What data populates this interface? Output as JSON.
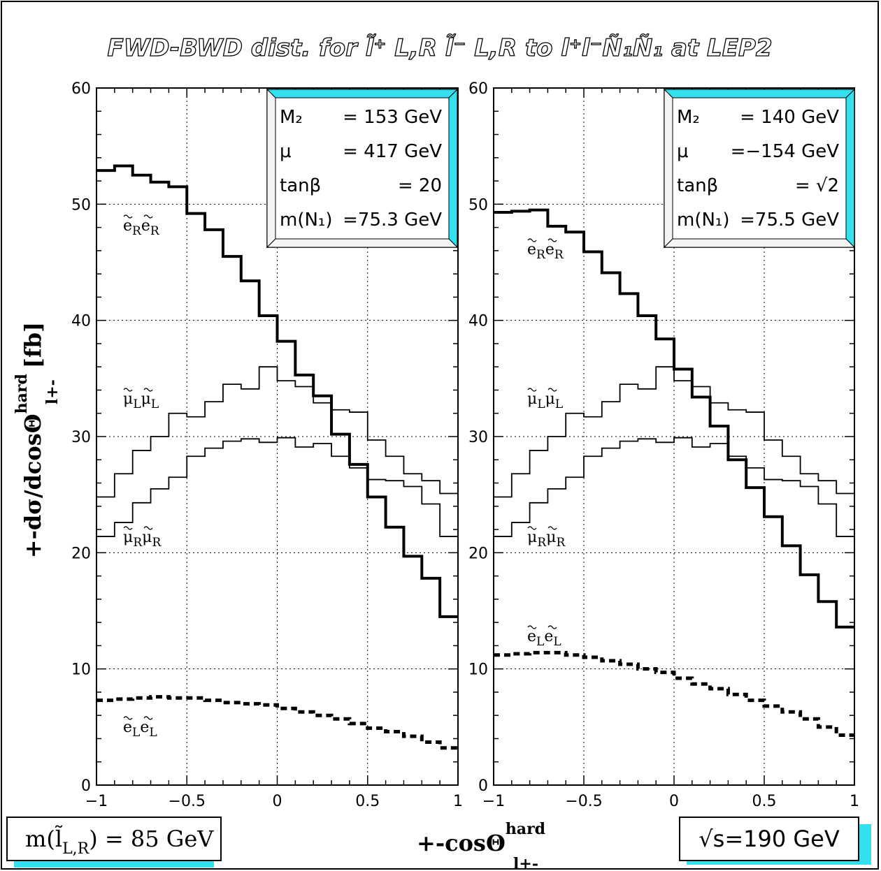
{
  "figure": {
    "title": "FWD-BWD dist. for l̃⁺ L,R l̃⁻ L,R to l⁺l⁻Ñ₁Ñ₁ at LEP2",
    "ylabel": "+-dσ/dcosΘ",
    "ylabel_sup": "hard",
    "ylabel_sub": "l+-",
    "ylabel_unit": "[fb]",
    "xlabel": "+-cosΘ",
    "xlabel_sup": "hard",
    "xlabel_sub": "l+-",
    "mass_box": "m(l̃L,R) = 85 GeV",
    "mass_box_main": "m(l̃",
    "mass_box_sub": "L,R",
    "mass_box_rest": ") = 85 GeV",
    "energy_box": "√s=190 GeV",
    "accent_color": "#33e0f0"
  },
  "chart_data": [
    {
      "type": "line",
      "xlim": [
        -1,
        1
      ],
      "ylim": [
        0,
        60
      ],
      "xticks": [
        "−1",
        "−0.5",
        "0",
        "0.5",
        "1"
      ],
      "yticks": [
        "0",
        "10",
        "20",
        "30",
        "40",
        "50",
        "60"
      ],
      "grid": true,
      "info_box": {
        "rows": [
          {
            "label": "M₂",
            "value": "= 153 GeV"
          },
          {
            "label": "μ",
            "value": "= 417 GeV"
          },
          {
            "label": "tanβ",
            "value": "= 20"
          },
          {
            "label": "m(N₁)",
            "value": "=75.3 GeV"
          }
        ]
      },
      "x_edges": [
        -1,
        -0.9,
        -0.8,
        -0.7,
        -0.6,
        -0.5,
        -0.4,
        -0.3,
        -0.2,
        -0.1,
        0,
        0.1,
        0.2,
        0.3,
        0.4,
        0.5,
        0.6,
        0.7,
        0.8,
        0.9,
        1
      ],
      "series": [
        {
          "name": "ẽRẽR",
          "style": "thick",
          "label_main": "e",
          "label_sub": "R",
          "values": [
            52.9,
            53.3,
            52.5,
            51.9,
            51.5,
            49.2,
            47.8,
            45.5,
            43.4,
            40.4,
            38.2,
            35.3,
            33.5,
            30.2,
            27.6,
            24.8,
            22.2,
            19.7,
            17.8,
            14.5
          ]
        },
        {
          "name": "μ̃Lμ̃L",
          "style": "thin",
          "label_main": "μ",
          "label_sub": "L",
          "values": [
            24.8,
            26.8,
            28.8,
            30.0,
            32.0,
            31.7,
            33.0,
            34.5,
            34.1,
            36.0,
            34.8,
            34.3,
            32.9,
            32.3,
            32.1,
            29.7,
            28.3,
            26.8,
            26.2,
            25.1
          ]
        },
        {
          "name": "μ̃Rμ̃R",
          "style": "thin",
          "label_main": "μ",
          "label_sub": "R",
          "values": [
            21.4,
            22.6,
            24.3,
            25.5,
            26.5,
            28.3,
            29.0,
            29.6,
            29.8,
            29.5,
            29.9,
            29.1,
            29.4,
            28.3,
            27.3,
            26.3,
            26.2,
            25.7,
            24.2,
            21.4
          ]
        },
        {
          "name": "ẽLẽL",
          "style": "dashed",
          "label_main": "e",
          "label_sub": "L",
          "values": [
            7.3,
            7.4,
            7.5,
            7.6,
            7.5,
            7.5,
            7.3,
            7.1,
            7.0,
            6.9,
            6.6,
            6.3,
            6.0,
            5.7,
            5.3,
            4.9,
            4.6,
            4.2,
            3.7,
            3.2
          ]
        }
      ]
    },
    {
      "type": "line",
      "xlim": [
        -1,
        1
      ],
      "ylim": [
        0,
        60
      ],
      "xticks": [
        "−1",
        "−0.5",
        "0",
        "0.5",
        "1"
      ],
      "yticks": [
        "0",
        "10",
        "20",
        "30",
        "40",
        "50",
        "60"
      ],
      "grid": true,
      "info_box": {
        "rows": [
          {
            "label": "M₂",
            "value": "=  140 GeV"
          },
          {
            "label": "μ",
            "value": "=−154 GeV"
          },
          {
            "label": "tanβ",
            "value": "=  √2"
          },
          {
            "label": "m(N₁)",
            "value": "=75.5 GeV"
          }
        ]
      },
      "x_edges": [
        -1,
        -0.9,
        -0.8,
        -0.7,
        -0.6,
        -0.5,
        -0.4,
        -0.3,
        -0.2,
        -0.1,
        0,
        0.1,
        0.2,
        0.3,
        0.4,
        0.5,
        0.6,
        0.7,
        0.8,
        0.9,
        1
      ],
      "series": [
        {
          "name": "ẽRẽR",
          "style": "thick",
          "label_main": "e",
          "label_sub": "R",
          "values": [
            49.3,
            49.4,
            49.5,
            48.1,
            47.6,
            45.9,
            44.1,
            42.3,
            40.4,
            38.4,
            35.8,
            33.4,
            30.9,
            28.0,
            25.6,
            23.1,
            20.6,
            18.1,
            15.8,
            13.6
          ]
        },
        {
          "name": "μ̃Lμ̃L",
          "style": "thin",
          "label_main": "μ",
          "label_sub": "L",
          "values": [
            24.8,
            26.8,
            28.8,
            30.0,
            32.0,
            31.7,
            33.0,
            34.5,
            34.1,
            36.0,
            34.8,
            34.3,
            32.9,
            32.3,
            32.1,
            29.7,
            28.3,
            26.8,
            26.2,
            25.1
          ]
        },
        {
          "name": "μ̃Rμ̃R",
          "style": "thin",
          "label_main": "μ",
          "label_sub": "R",
          "values": [
            21.4,
            22.6,
            24.3,
            25.5,
            26.5,
            28.3,
            29.0,
            29.6,
            29.8,
            29.5,
            29.9,
            29.1,
            29.4,
            28.3,
            27.3,
            26.3,
            26.2,
            25.7,
            24.2,
            21.4
          ]
        },
        {
          "name": "ẽLẽL",
          "style": "dashed",
          "label_main": "e",
          "label_sub": "L",
          "values": [
            11.2,
            11.3,
            11.4,
            11.4,
            11.2,
            11.0,
            10.7,
            10.4,
            10.0,
            9.7,
            9.2,
            8.7,
            8.3,
            7.8,
            7.3,
            6.8,
            6.3,
            5.7,
            5.0,
            4.3
          ]
        }
      ]
    }
  ]
}
